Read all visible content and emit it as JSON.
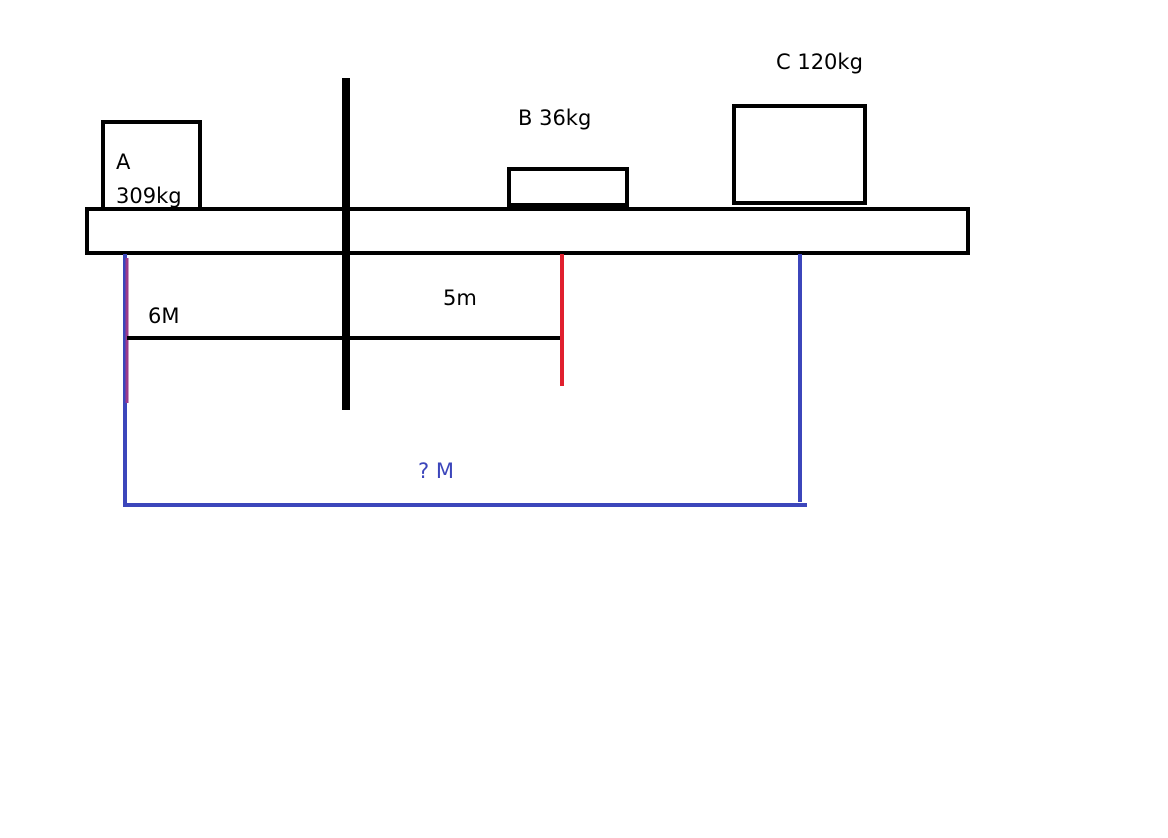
{
  "masses": {
    "a_name": "A",
    "a_mass": "309kg",
    "b_label": "B 36kg",
    "c_label": "C 120kg"
  },
  "distances": {
    "a_to_pivot": "6M",
    "pivot_to_b": "5m",
    "a_to_c": "? M"
  },
  "colors": {
    "outline": "#000000",
    "b_marker": "#e0202e",
    "c_marker": "#3c46bb",
    "a_marker": "#9b3a8c",
    "unknown_label": "#3c46bb"
  }
}
